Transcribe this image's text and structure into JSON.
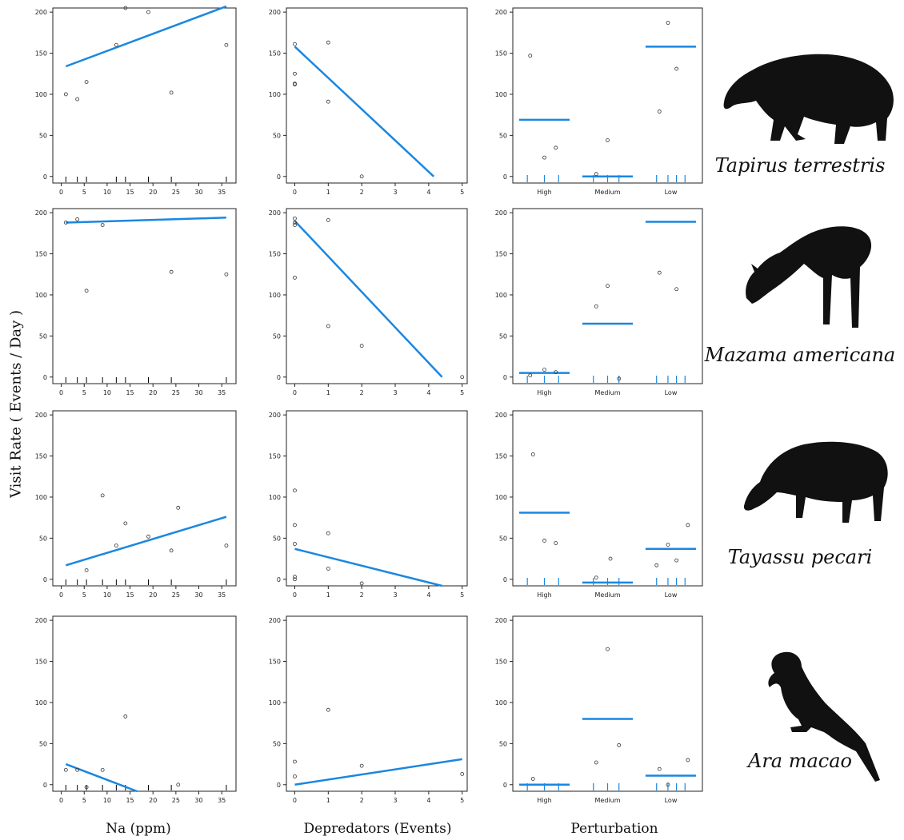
{
  "axis_labels": {
    "y": "Visit Rate ( Events / Day )",
    "x_na": "Na (ppm)",
    "x_dep": "Depredators (Events)",
    "x_pert": "Perturbation"
  },
  "species": [
    "Tapirus terrestris",
    "Mazama americana",
    "Tayassu pecari",
    "Ara macao"
  ],
  "colors": {
    "fit": "#1a87e0",
    "point": "#333333",
    "frame": "#222222"
  },
  "silhouettes": [
    "tapir-icon",
    "deer-icon",
    "peccary-icon",
    "macaw-icon"
  ],
  "chart_data": [
    {
      "type": "scatter",
      "row": 0,
      "species": "Tapirus terrestris",
      "xlabel": "Na (ppm)",
      "xlim": [
        0,
        37
      ],
      "ylim": [
        0,
        200
      ],
      "x_ticks": [
        0,
        5,
        10,
        15,
        20,
        25,
        30,
        35
      ],
      "y_ticks": [
        0,
        50,
        100,
        150,
        200
      ],
      "points": [
        [
          1,
          100
        ],
        [
          3.5,
          94
        ],
        [
          5.5,
          115
        ],
        [
          12,
          160
        ],
        [
          14,
          205
        ],
        [
          19,
          200
        ],
        [
          24,
          102
        ],
        [
          36,
          160
        ]
      ],
      "rug": [
        1,
        3.5,
        5.5,
        12,
        14,
        19,
        24,
        36
      ],
      "fit": [
        [
          1,
          134
        ],
        [
          36,
          207
        ]
      ]
    },
    {
      "type": "scatter",
      "row": 0,
      "species": "Tapirus terrestris",
      "xlabel": "Depredators (Events)",
      "xlim": [
        0,
        5
      ],
      "ylim": [
        0,
        200
      ],
      "x_ticks": [
        0,
        1,
        2,
        3,
        4,
        5
      ],
      "y_ticks": [
        0,
        50,
        100,
        150,
        200
      ],
      "points": [
        [
          0,
          161
        ],
        [
          0,
          125
        ],
        [
          0,
          113
        ],
        [
          0,
          112
        ],
        [
          1,
          163
        ],
        [
          1,
          91
        ],
        [
          2,
          0
        ]
      ],
      "rug": [],
      "fit": [
        [
          0,
          158
        ],
        [
          4.15,
          0
        ]
      ]
    },
    {
      "type": "strip",
      "row": 0,
      "species": "Tapirus terrestris",
      "xlabel": "Perturbation",
      "ylim": [
        0,
        200
      ],
      "categories": [
        "High",
        "Medium",
        "Low"
      ],
      "y_ticks": [
        0,
        50,
        100,
        150,
        200
      ],
      "y_tick_labels": [
        "0",
        "50",
        "100",
        "150",
        "200"
      ],
      "points": [
        [
          0,
          -0.25,
          147
        ],
        [
          0,
          0,
          23
        ],
        [
          0,
          0.2,
          35
        ],
        [
          1,
          -0.2,
          3
        ],
        [
          1,
          0,
          44
        ],
        [
          2,
          -0.2,
          79
        ],
        [
          2,
          -0.05,
          187
        ],
        [
          2,
          0.1,
          131
        ]
      ],
      "rug": [
        [
          0,
          -0.3
        ],
        [
          0,
          0
        ],
        [
          0,
          0.25
        ],
        [
          1,
          -0.25
        ],
        [
          1,
          0
        ],
        [
          1,
          0.2
        ],
        [
          2,
          -0.25
        ],
        [
          2,
          -0.05
        ],
        [
          2,
          0.1
        ],
        [
          2,
          0.25
        ]
      ],
      "means": [
        69,
        0,
        158
      ]
    },
    {
      "type": "scatter",
      "row": 1,
      "species": "Mazama americana",
      "xlabel": "Na (ppm)",
      "xlim": [
        0,
        37
      ],
      "ylim": [
        0,
        200
      ],
      "x_ticks": [
        0,
        5,
        10,
        15,
        20,
        25,
        30,
        35
      ],
      "y_ticks": [
        0,
        50,
        100,
        150,
        200
      ],
      "points": [
        [
          1,
          188
        ],
        [
          3.5,
          192
        ],
        [
          5.5,
          105
        ],
        [
          9,
          185
        ],
        [
          24,
          128
        ],
        [
          36,
          125
        ]
      ],
      "rug": [
        1,
        3.5,
        5.5,
        9,
        12,
        14,
        19,
        24,
        36
      ],
      "fit": [
        [
          1,
          188
        ],
        [
          36,
          194
        ]
      ]
    },
    {
      "type": "scatter",
      "row": 1,
      "species": "Mazama americana",
      "xlabel": "Depredators (Events)",
      "xlim": [
        0,
        5
      ],
      "ylim": [
        0,
        200
      ],
      "x_ticks": [
        0,
        1,
        2,
        3,
        4,
        5
      ],
      "y_ticks": [
        0,
        50,
        100,
        150,
        200
      ],
      "points": [
        [
          0,
          193
        ],
        [
          0,
          188
        ],
        [
          0,
          185
        ],
        [
          0,
          121
        ],
        [
          1,
          191
        ],
        [
          1,
          62
        ],
        [
          2,
          38
        ],
        [
          5,
          0
        ]
      ],
      "rug": [],
      "fit": [
        [
          0,
          190
        ],
        [
          4.4,
          0
        ]
      ]
    },
    {
      "type": "strip",
      "row": 1,
      "species": "Mazama americana",
      "xlabel": "Perturbation",
      "ylim": [
        0,
        200
      ],
      "categories": [
        "High",
        "Medium",
        "Low"
      ],
      "y_ticks": [
        0,
        50,
        100,
        150,
        200
      ],
      "y_tick_labels": [
        "0",
        "50",
        "100",
        "150",
        "200"
      ],
      "points": [
        [
          0,
          -0.25,
          2
        ],
        [
          0,
          0,
          9
        ],
        [
          0,
          0.2,
          6
        ],
        [
          1,
          -0.2,
          86
        ],
        [
          1,
          0,
          111
        ],
        [
          1,
          0.2,
          -2
        ],
        [
          2,
          -0.2,
          127
        ],
        [
          2,
          0.1,
          107
        ]
      ],
      "rug": [
        [
          0,
          -0.3
        ],
        [
          0,
          0
        ],
        [
          0,
          0.25
        ],
        [
          1,
          -0.25
        ],
        [
          1,
          0
        ],
        [
          1,
          0.2
        ],
        [
          2,
          -0.25
        ],
        [
          2,
          -0.05
        ],
        [
          2,
          0.1
        ],
        [
          2,
          0.25
        ]
      ],
      "means": [
        5,
        65,
        189
      ]
    },
    {
      "type": "scatter",
      "row": 2,
      "species": "Tayassu pecari",
      "xlabel": "Na (ppm)",
      "xlim": [
        0,
        37
      ],
      "ylim": [
        0,
        200
      ],
      "x_ticks": [
        0,
        5,
        10,
        15,
        20,
        25,
        30,
        35
      ],
      "y_ticks": [
        0,
        50,
        100,
        150,
        200
      ],
      "points": [
        [
          5.5,
          11
        ],
        [
          9,
          102
        ],
        [
          12,
          41
        ],
        [
          14,
          68
        ],
        [
          19,
          52
        ],
        [
          24,
          35
        ],
        [
          25.5,
          87
        ],
        [
          36,
          41
        ]
      ],
      "rug": [
        1,
        3.5,
        5.5,
        9,
        12,
        14,
        19,
        24,
        36
      ],
      "fit": [
        [
          1,
          17
        ],
        [
          36,
          76
        ]
      ]
    },
    {
      "type": "scatter",
      "row": 2,
      "species": "Tayassu pecari",
      "xlabel": "Depredators (Events)",
      "xlim": [
        0,
        5
      ],
      "ylim": [
        0,
        200
      ],
      "x_ticks": [
        0,
        1,
        2,
        3,
        4,
        5
      ],
      "y_ticks": [
        0,
        50,
        100,
        150,
        200
      ],
      "points": [
        [
          0,
          108
        ],
        [
          0,
          66
        ],
        [
          0,
          43
        ],
        [
          0,
          3
        ],
        [
          0,
          0
        ],
        [
          1,
          56
        ],
        [
          1,
          13
        ],
        [
          2,
          -5
        ]
      ],
      "rug": [],
      "fit": [
        [
          0,
          37
        ],
        [
          4.4,
          -8
        ]
      ]
    },
    {
      "type": "strip",
      "row": 2,
      "species": "Tayassu pecari",
      "xlabel": "Perturbation",
      "ylim": [
        0,
        200
      ],
      "categories": [
        "High",
        "Medium",
        "Low"
      ],
      "y_ticks": [
        0,
        50,
        100,
        150,
        200
      ],
      "y_tick_labels": [
        "0",
        "50",
        "100",
        "150",
        "200"
      ],
      "points": [
        [
          0,
          -0.2,
          152
        ],
        [
          0,
          0,
          47
        ],
        [
          0,
          0.2,
          44
        ],
        [
          1,
          -0.2,
          2
        ],
        [
          1,
          0.05,
          25
        ],
        [
          2,
          -0.25,
          17
        ],
        [
          2,
          -0.05,
          42
        ],
        [
          2,
          0.1,
          23
        ],
        [
          2,
          0.3,
          66
        ]
      ],
      "rug": [
        [
          0,
          -0.3
        ],
        [
          0,
          0
        ],
        [
          0,
          0.25
        ],
        [
          1,
          -0.25
        ],
        [
          1,
          0
        ],
        [
          1,
          0.2
        ],
        [
          2,
          -0.25
        ],
        [
          2,
          -0.05
        ],
        [
          2,
          0.1
        ],
        [
          2,
          0.25
        ]
      ],
      "means": [
        81,
        -4,
        37
      ]
    },
    {
      "type": "scatter",
      "row": 3,
      "species": "Ara macao",
      "xlabel": "Na (ppm)",
      "xlim": [
        0,
        37
      ],
      "ylim": [
        0,
        200
      ],
      "x_ticks": [
        0,
        5,
        10,
        15,
        20,
        25,
        30,
        35
      ],
      "y_ticks": [
        0,
        50,
        100,
        150,
        200
      ],
      "points": [
        [
          1,
          18
        ],
        [
          3.5,
          18
        ],
        [
          5.5,
          -3
        ],
        [
          9,
          18
        ],
        [
          14,
          83
        ],
        [
          25.5,
          0
        ]
      ],
      "rug": [
        1,
        3.5,
        5.5,
        9,
        12,
        14,
        19,
        24,
        36
      ],
      "fit": [
        [
          1,
          25
        ],
        [
          16.5,
          -8
        ]
      ]
    },
    {
      "type": "scatter",
      "row": 3,
      "species": "Ara macao",
      "xlabel": "Depredators (Events)",
      "xlim": [
        0,
        5
      ],
      "ylim": [
        0,
        200
      ],
      "x_ticks": [
        0,
        1,
        2,
        3,
        4,
        5
      ],
      "y_ticks": [
        0,
        50,
        100,
        150,
        200
      ],
      "points": [
        [
          0,
          28
        ],
        [
          0,
          10
        ],
        [
          1,
          91
        ],
        [
          2,
          23
        ],
        [
          5,
          13
        ]
      ],
      "rug": [],
      "fit": [
        [
          0,
          0
        ],
        [
          5,
          31
        ]
      ]
    },
    {
      "type": "strip",
      "row": 3,
      "species": "Ara macao",
      "xlabel": "Perturbation",
      "ylim": [
        0,
        200
      ],
      "categories": [
        "High",
        "Medium",
        "Low"
      ],
      "y_ticks": [
        0,
        50,
        100,
        150,
        200
      ],
      "y_tick_labels": [
        "0",
        "50",
        "100",
        "150",
        "200"
      ],
      "points": [
        [
          0,
          -0.2,
          7
        ],
        [
          1,
          -0.2,
          27
        ],
        [
          1,
          0,
          165
        ],
        [
          1,
          0.2,
          48
        ],
        [
          2,
          -0.2,
          19
        ],
        [
          2,
          -0.05,
          0
        ],
        [
          2,
          0.3,
          30
        ]
      ],
      "rug": [
        [
          0,
          -0.3
        ],
        [
          0,
          0
        ],
        [
          0,
          0.25
        ],
        [
          1,
          -0.25
        ],
        [
          1,
          0
        ],
        [
          1,
          0.2
        ],
        [
          2,
          -0.25
        ],
        [
          2,
          -0.05
        ],
        [
          2,
          0.1
        ],
        [
          2,
          0.25
        ]
      ],
      "means": [
        0,
        80,
        11
      ]
    }
  ]
}
